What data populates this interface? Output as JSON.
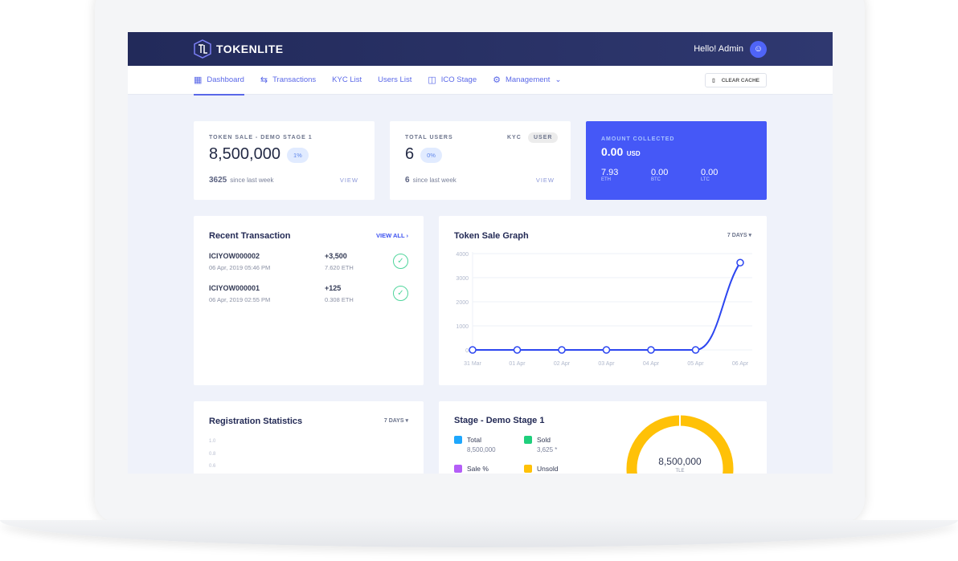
{
  "header": {
    "brand": "TOKENLITE",
    "greeting": "Hello! Admin"
  },
  "nav": {
    "items": [
      {
        "label": "Dashboard",
        "icon": "grid-icon"
      },
      {
        "label": "Transactions",
        "icon": "arrows-icon"
      },
      {
        "label": "KYC List"
      },
      {
        "label": "Users List"
      },
      {
        "label": "ICO Stage",
        "icon": "coins-icon"
      },
      {
        "label": "Management",
        "icon": "gear-icon"
      }
    ],
    "clear_cache": "CLEAR CACHE"
  },
  "token_sale": {
    "label": "TOKEN SALE - DEMO STAGE 1",
    "value": "8,500,000",
    "badge": "1%",
    "since_count": "3625",
    "since_text": "since last week",
    "view": "VIEW"
  },
  "users": {
    "label": "TOTAL USERS",
    "kyc": "KYC",
    "user": "USER",
    "value": "6",
    "badge": "0%",
    "since_count": "6",
    "since_text": "since last week",
    "view": "VIEW"
  },
  "amount": {
    "label": "AMOUNT COLLECTED",
    "value": "0.00",
    "unit": "USD",
    "coins": [
      {
        "value": "7.93",
        "label": "ETH"
      },
      {
        "value": "0.00",
        "label": "BTC"
      },
      {
        "value": "0.00",
        "label": "LTC"
      }
    ],
    "accent": "#4558f7"
  },
  "recent": {
    "title": "Recent Transaction",
    "view_all": "VIEW ALL",
    "items": [
      {
        "id": "ICIYOW000002",
        "date": "06 Apr, 2019 05:46 PM",
        "amount": "+3,500",
        "eth": "7.620 ETH"
      },
      {
        "id": "ICIYOW000001",
        "date": "06 Apr, 2019 02:55 PM",
        "amount": "+125",
        "eth": "0.308 ETH"
      }
    ]
  },
  "graph": {
    "title": "Token Sale Graph",
    "range": "7 DAYS"
  },
  "chart_data": {
    "type": "line",
    "categories": [
      "31 Mar",
      "01 Apr",
      "02 Apr",
      "03 Apr",
      "04 Apr",
      "05 Apr",
      "06 Apr"
    ],
    "values": [
      0,
      0,
      0,
      0,
      0,
      0,
      3625
    ],
    "yticks": [
      "0",
      "1000",
      "2000",
      "3000",
      "4000"
    ],
    "ylim": [
      0,
      4000
    ],
    "grid": true,
    "color": "#2c46f0"
  },
  "registration": {
    "title": "Registration Statistics",
    "range": "7 DAYS",
    "yticks": [
      "1.0",
      "0.8",
      "0.6"
    ]
  },
  "stage": {
    "title": "Stage - Demo Stage 1",
    "legend": [
      {
        "label": "Total",
        "value": "8,500,000",
        "color": "#1ea7fd"
      },
      {
        "label": "Sold",
        "value": "3,625 *",
        "color": "#1fcf7c"
      },
      {
        "label": "Sale %",
        "color": "#b45ef7"
      },
      {
        "label": "Unsold",
        "color": "#ffc107"
      }
    ],
    "donut_value": "8,500,000",
    "donut_unit": "TLE"
  }
}
